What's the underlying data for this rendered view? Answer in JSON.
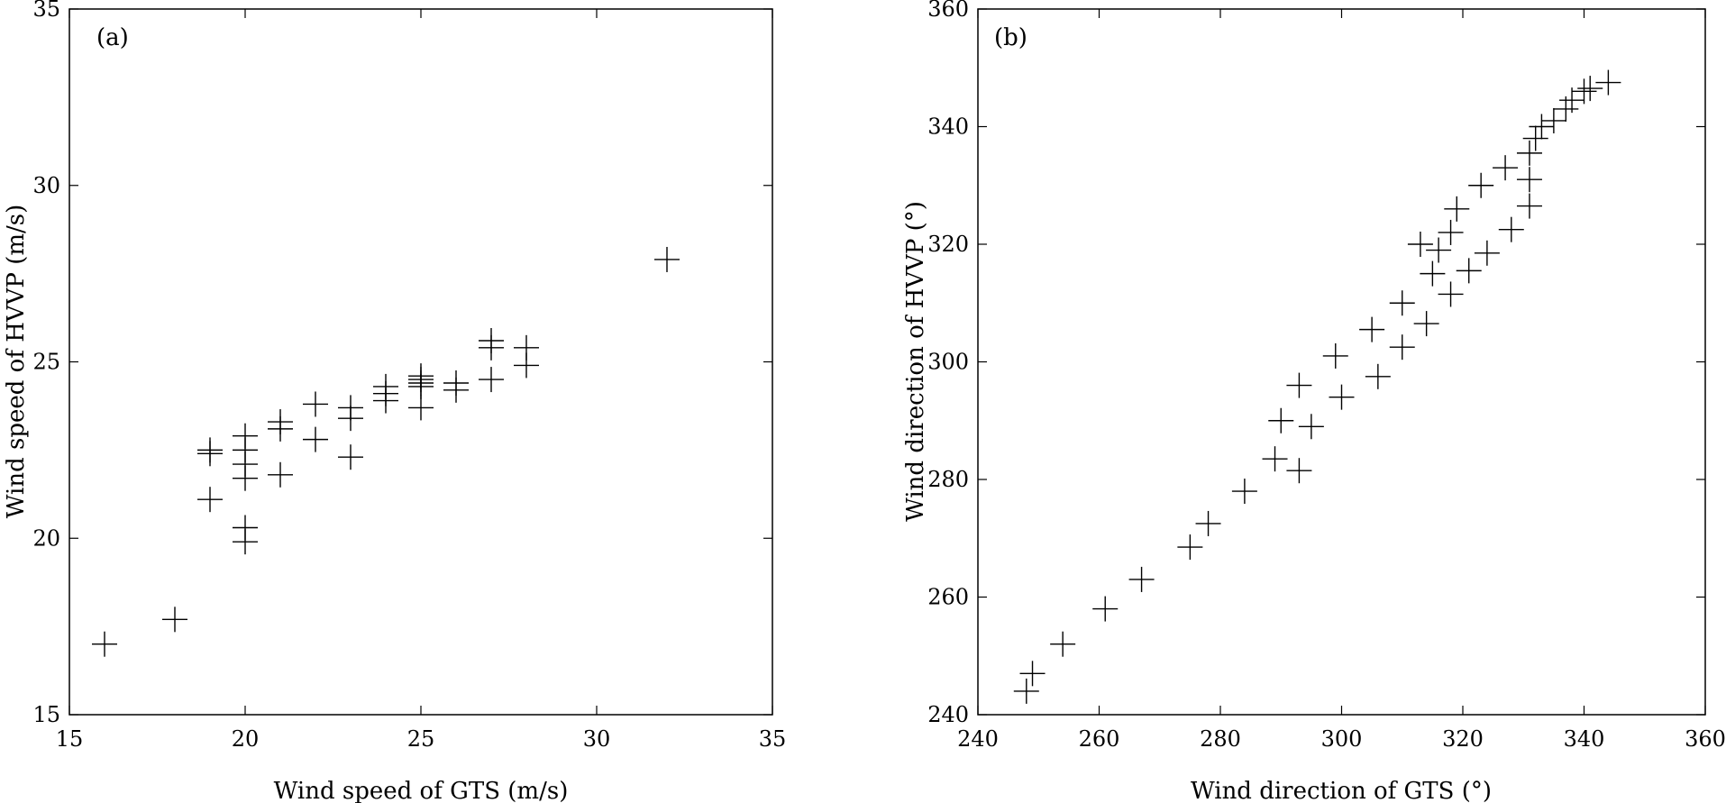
{
  "chart_data": [
    {
      "type": "scatter",
      "panel_label": "(a)",
      "xlabel": "Wind speed of GTS (m/s)",
      "ylabel": "Wind speed of HVVP (m/s)",
      "xlim": [
        15,
        35
      ],
      "ylim": [
        15,
        35
      ],
      "xticks": [
        15,
        20,
        25,
        30,
        35
      ],
      "yticks": [
        15,
        20,
        25,
        30,
        35
      ],
      "marker": "+",
      "grid": false,
      "points": [
        [
          16,
          17.0
        ],
        [
          18,
          17.7
        ],
        [
          19,
          21.1
        ],
        [
          19,
          22.4
        ],
        [
          19,
          22.5
        ],
        [
          20,
          19.9
        ],
        [
          20,
          20.3
        ],
        [
          20,
          21.7
        ],
        [
          20,
          22.1
        ],
        [
          20,
          22.5
        ],
        [
          20,
          22.9
        ],
        [
          21,
          21.8
        ],
        [
          21,
          23.1
        ],
        [
          21,
          23.3
        ],
        [
          22,
          22.8
        ],
        [
          22,
          23.8
        ],
        [
          23,
          22.3
        ],
        [
          23,
          23.4
        ],
        [
          23,
          23.7
        ],
        [
          24,
          23.9
        ],
        [
          24,
          24.1
        ],
        [
          24,
          24.3
        ],
        [
          25,
          23.7
        ],
        [
          25,
          24.3
        ],
        [
          25,
          24.4
        ],
        [
          25,
          24.5
        ],
        [
          25,
          24.6
        ],
        [
          26,
          24.2
        ],
        [
          26,
          24.4
        ],
        [
          27,
          24.5
        ],
        [
          27,
          25.4
        ],
        [
          27,
          25.6
        ],
        [
          28,
          24.9
        ],
        [
          28,
          25.4
        ],
        [
          32,
          27.9
        ]
      ]
    },
    {
      "type": "scatter",
      "panel_label": "(b)",
      "xlabel": "Wind direction of GTS (°)",
      "ylabel": "Wind direction of HVVP (°)",
      "xlim": [
        240,
        360
      ],
      "ylim": [
        240,
        360
      ],
      "xticks": [
        240,
        260,
        280,
        300,
        320,
        340,
        360
      ],
      "yticks": [
        240,
        260,
        280,
        300,
        320,
        340,
        360
      ],
      "marker": "+",
      "grid": false,
      "points": [
        [
          248,
          244
        ],
        [
          249,
          247
        ],
        [
          254,
          252
        ],
        [
          261,
          258
        ],
        [
          267,
          263
        ],
        [
          275,
          268.5
        ],
        [
          278,
          272.5
        ],
        [
          284,
          278
        ],
        [
          289,
          283.5
        ],
        [
          293,
          281.5
        ],
        [
          290,
          290
        ],
        [
          293,
          296
        ],
        [
          295,
          289
        ],
        [
          299,
          301
        ],
        [
          300,
          294
        ],
        [
          305,
          305.5
        ],
        [
          306,
          297.5
        ],
        [
          310,
          310
        ],
        [
          310,
          302.5
        ],
        [
          313,
          320
        ],
        [
          314,
          306.5
        ],
        [
          315,
          315
        ],
        [
          316,
          319
        ],
        [
          318,
          322
        ],
        [
          319,
          326
        ],
        [
          318,
          311.5
        ],
        [
          321,
          315.5
        ],
        [
          323,
          330
        ],
        [
          324,
          318.5
        ],
        [
          327,
          333
        ],
        [
          328,
          322.5
        ],
        [
          331,
          326.5
        ],
        [
          331,
          331
        ],
        [
          331,
          335.5
        ],
        [
          332,
          338
        ],
        [
          333,
          340
        ],
        [
          335,
          341
        ],
        [
          337,
          343
        ],
        [
          338,
          344.5
        ],
        [
          340,
          346
        ],
        [
          341,
          346.5
        ],
        [
          344,
          347.5
        ]
      ]
    }
  ]
}
